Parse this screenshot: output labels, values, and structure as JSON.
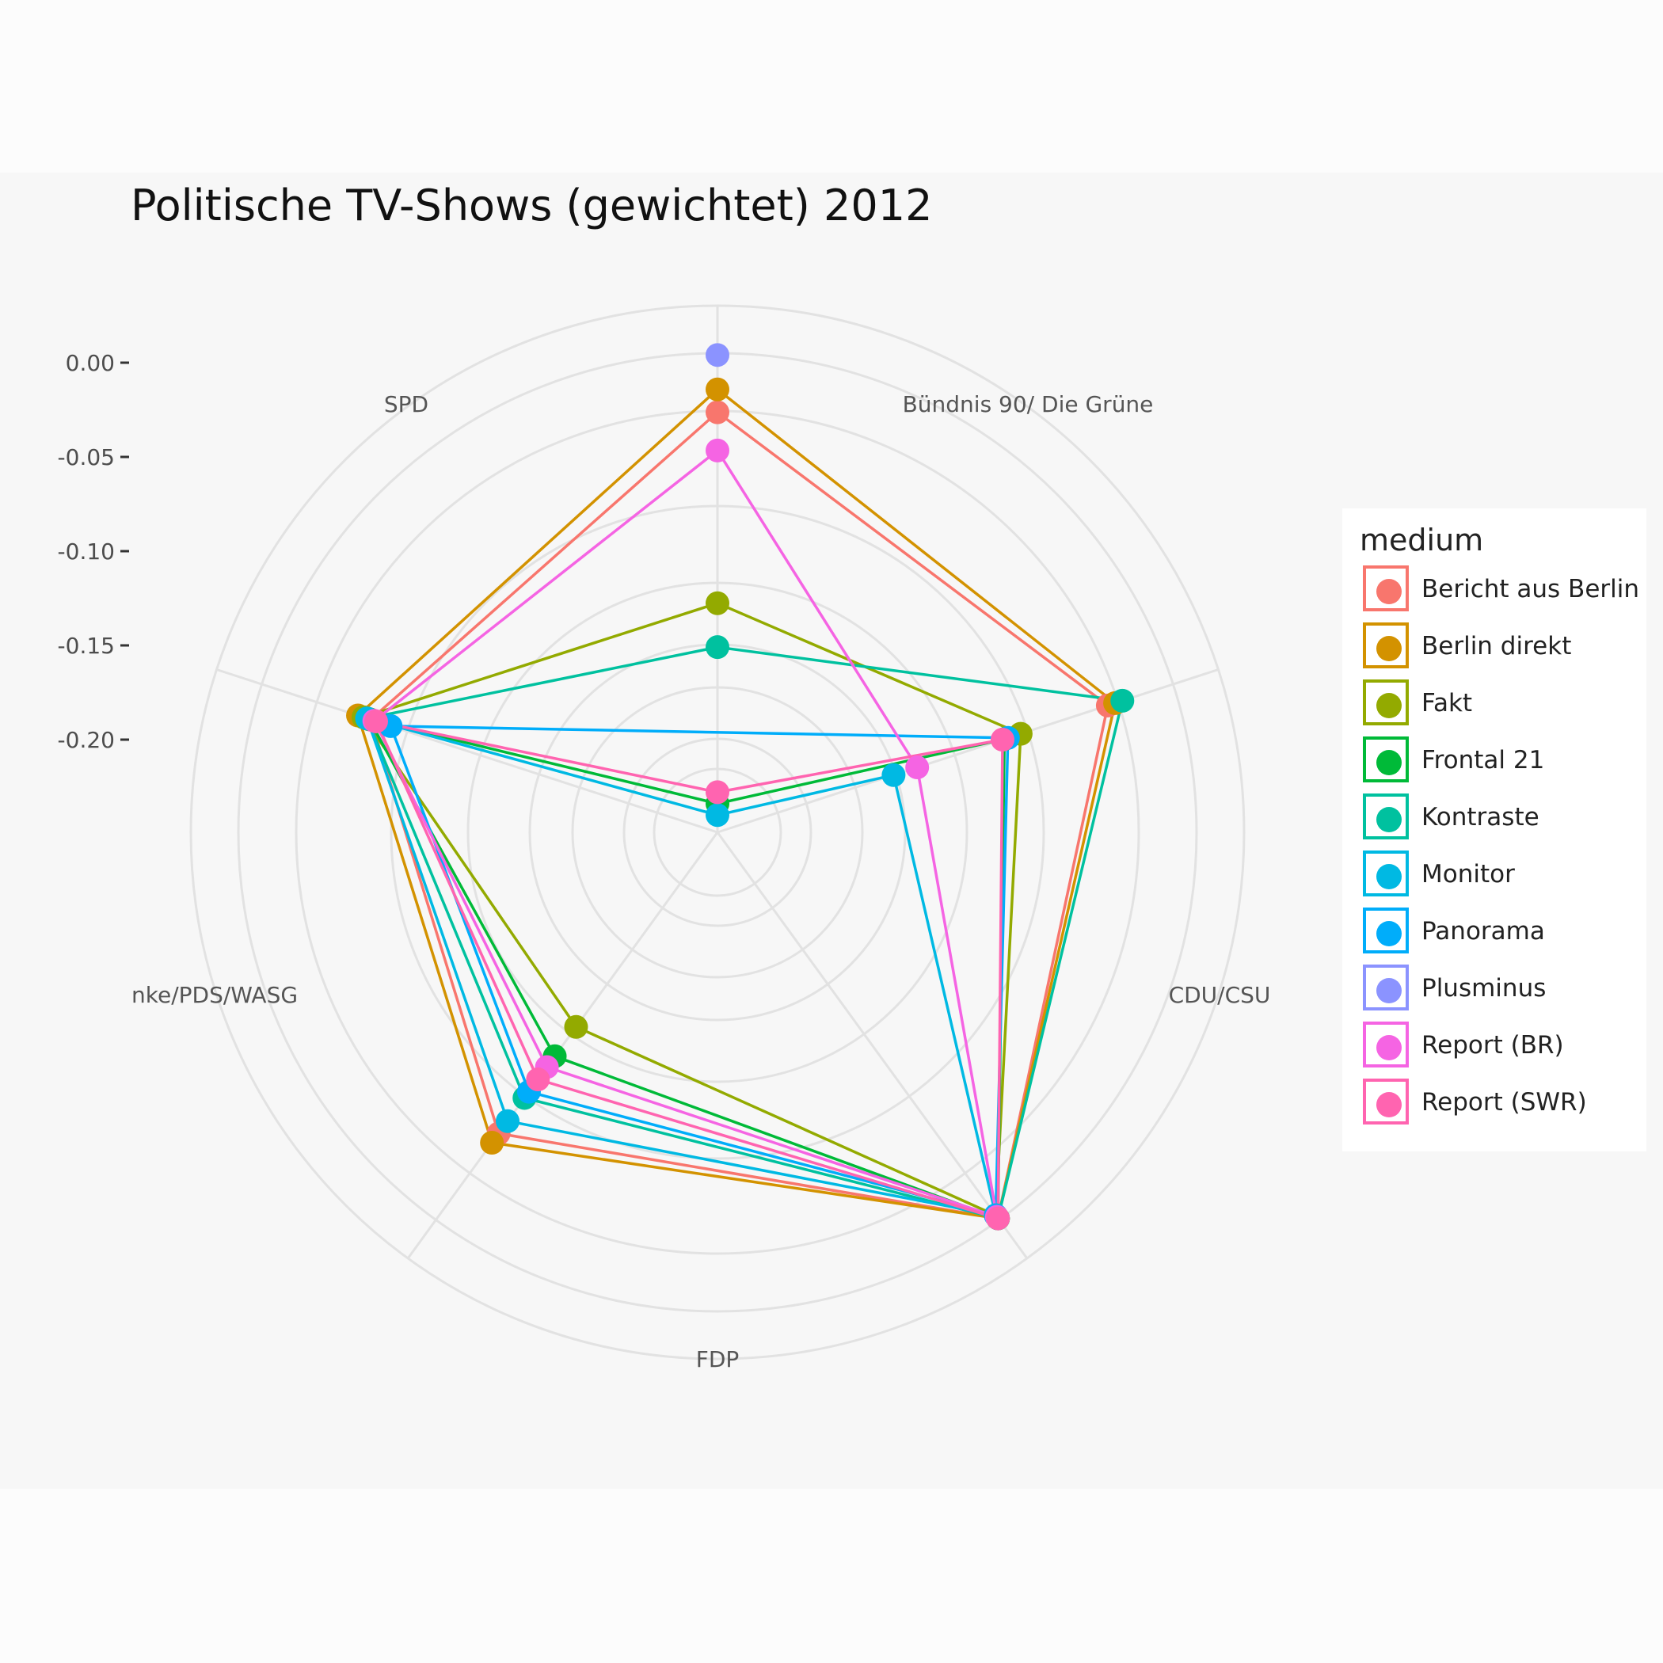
{
  "chart_data": {
    "type": "radar",
    "title": "Politische TV-Shows (gewichtet) 2012",
    "axes": [
      "SPD",
      "Bündnis 90/ Die Grüne",
      "CDU/CSU",
      "FDP",
      "nke/PDS/WASG"
    ],
    "y_ticks": [
      "0.00",
      "-0.05",
      "-0.10",
      "-0.15",
      "-0.20"
    ],
    "y_range": [
      -0.25,
      0.03
    ],
    "grid": true,
    "legend_title": "medium",
    "legend_position": "right",
    "series": [
      {
        "name": "Bericht aus Berlin",
        "color": "#F8766D",
        "values": [
          -0.055,
          -0.059,
          -0.03,
          -0.035,
          0.0
        ]
      },
      {
        "name": "Berlin direkt",
        "color": "#D39200",
        "values": [
          -0.049,
          -0.052,
          -0.018,
          -0.031,
          0.0
        ]
      },
      {
        "name": "Fakt",
        "color": "#93AA00",
        "values": [
          -0.124,
          -0.055,
          -0.13,
          -0.083,
          -0.002
        ]
      },
      {
        "name": "Frontal 21",
        "color": "#00BA38",
        "values": [
          -0.105,
          -0.058,
          -0.235,
          -0.092,
          0.0
        ]
      },
      {
        "name": "Kontraste",
        "color": "#00C19F",
        "values": [
          -0.078,
          -0.057,
          -0.153,
          -0.027,
          0.0
        ]
      },
      {
        "name": "Monitor",
        "color": "#00B9E3",
        "values": [
          -0.063,
          -0.057,
          -0.241,
          -0.153,
          -0.002
        ]
      },
      {
        "name": "Panorama",
        "color": "#00ADFA",
        "values": [
          -0.082,
          -0.07,
          null,
          -0.09,
          -0.002
        ]
      },
      {
        "name": "Plusminus",
        "color": "#8B93FF",
        "values": [
          null,
          null,
          0.0,
          null,
          null
        ]
      },
      {
        "name": "Report (BR)",
        "color": "#F564E3",
        "values": [
          -0.098,
          -0.061,
          -0.05,
          -0.14,
          -0.001
        ]
      },
      {
        "name": "Report (SWR)",
        "color": "#FF64B0",
        "values": [
          -0.09,
          -0.062,
          -0.229,
          -0.093,
          0.0
        ]
      }
    ]
  }
}
